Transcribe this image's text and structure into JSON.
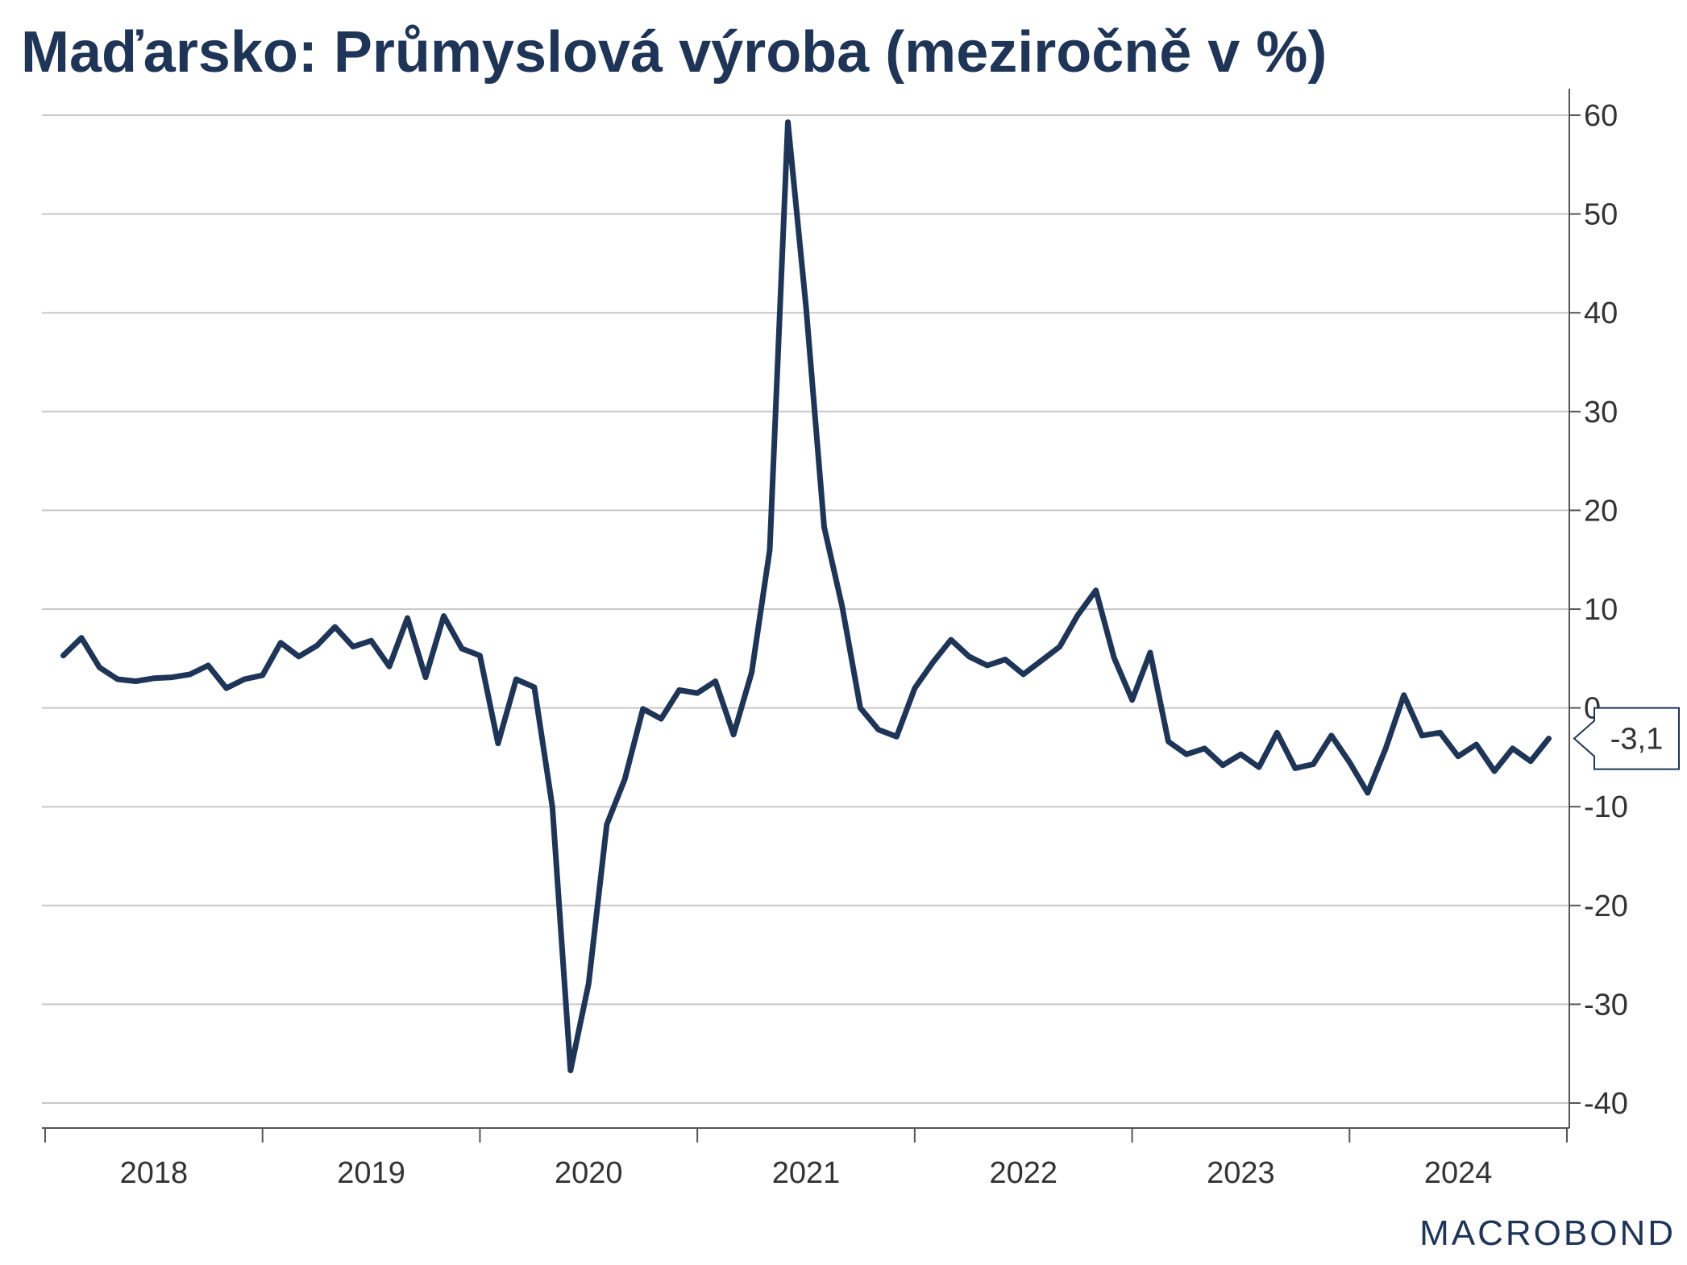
{
  "chart_data": {
    "type": "line",
    "title": "Maďarsko: Průmyslová výroba (meziročně v %)",
    "xlabel": "",
    "ylabel": "",
    "y_axis_position": "right",
    "ylim": [
      -40,
      60
    ],
    "yticks": [
      60,
      50,
      40,
      30,
      20,
      10,
      0,
      -10,
      -20,
      -30,
      -40
    ],
    "ytick_labels": [
      "60",
      "50",
      "40",
      "30",
      "20",
      "10",
      "0",
      "-10",
      "-20",
      "-30",
      "-40"
    ],
    "xlim": [
      "2017-12",
      "2024-12"
    ],
    "x_year_labels": [
      "2018",
      "2019",
      "2020",
      "2021",
      "2022",
      "2023",
      "2024"
    ],
    "grid": "horizontal",
    "series": [
      {
        "color": "#1f3557",
        "start": "2018-01",
        "frequency": "monthly",
        "values": [
          5.3,
          7.1,
          4.1,
          2.9,
          2.7,
          3.0,
          3.1,
          3.4,
          4.3,
          2.0,
          2.9,
          3.3,
          6.6,
          5.2,
          6.3,
          8.2,
          6.2,
          6.8,
          4.2,
          9.1,
          3.1,
          9.3,
          6.0,
          5.3,
          -3.6,
          2.9,
          2.1,
          -10.0,
          -36.7,
          -27.9,
          -11.8,
          -7.2,
          -0.1,
          -1.1,
          1.8,
          1.5,
          2.7,
          -2.7,
          3.6,
          16.0,
          59.3,
          40.6,
          18.3,
          10.2,
          0.0,
          -2.2,
          -2.9,
          2.0,
          4.6,
          6.9,
          5.2,
          4.3,
          4.9,
          3.4,
          4.8,
          6.2,
          9.4,
          11.9,
          5.1,
          0.8,
          5.6,
          -3.4,
          -4.7,
          -4.1,
          -5.8,
          -4.7,
          -6.0,
          -2.5,
          -6.1,
          -5.7,
          -2.8,
          -5.5,
          -8.6,
          -4.1,
          1.3,
          -2.8,
          -2.5,
          -4.9,
          -3.7,
          -6.4,
          -4.1,
          -5.4,
          -3.1
        ]
      }
    ],
    "last_value_label": "-3,1"
  },
  "logo": "MACROBOND"
}
